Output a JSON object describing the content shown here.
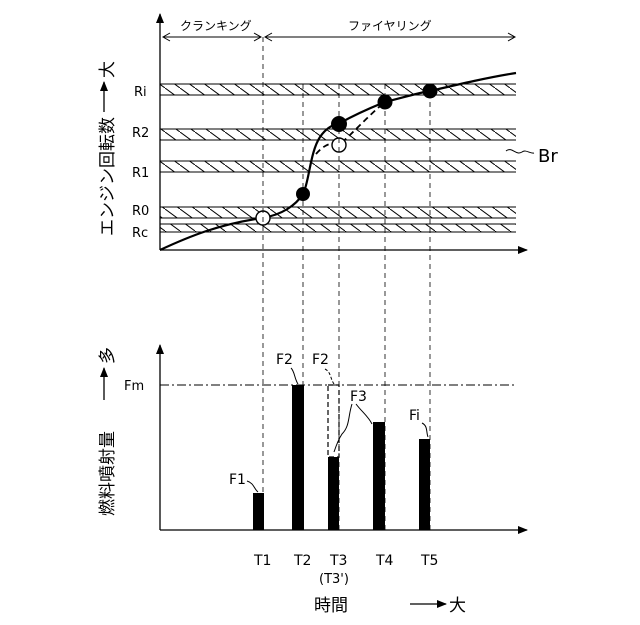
{
  "top_panel": {
    "phase_cranking": "クランキング",
    "phase_firing": "ファイヤリング",
    "y_axis_label": "エンジン回転数",
    "y_axis_direction": "大",
    "levels": [
      "Ri",
      "R2",
      "R1",
      "R0",
      "Rc"
    ],
    "band_label": "Br"
  },
  "bottom_panel": {
    "y_axis_label": "燃料噴射量",
    "y_axis_direction": "多",
    "fm_label": "Fm",
    "bar_labels": {
      "f1": "F1",
      "f2": "F2",
      "f2_dashed": "F2",
      "f3": "F3",
      "fi": "Fi"
    }
  },
  "time_axis": {
    "ticks": [
      "T1",
      "T2",
      "T3",
      "T4",
      "T5"
    ],
    "t3_alt": "(T3')",
    "label": "時間",
    "direction": "大"
  },
  "colors": {
    "ink": "#000000",
    "background": "#ffffff"
  }
}
